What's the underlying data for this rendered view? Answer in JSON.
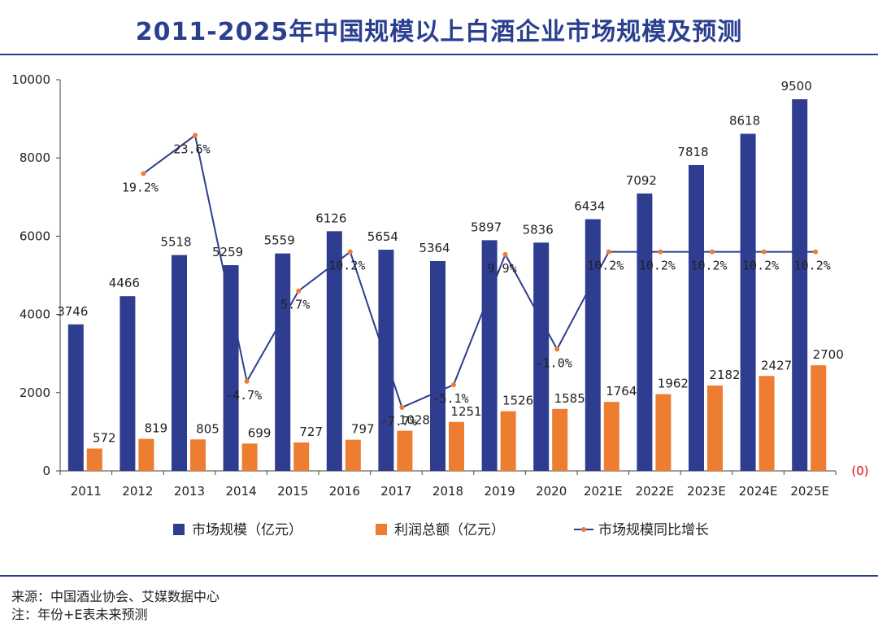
{
  "header": {
    "title": "2011-2025年中国规模以上白酒企业市场规模及预测"
  },
  "footer": {
    "source": "来源：中国酒业协会、艾媒数据中心",
    "note": "注：年份+E表未来预测"
  },
  "chart_data": {
    "type": "bar",
    "categories": [
      "2011",
      "2012",
      "2013",
      "2014",
      "2015",
      "2016",
      "2017",
      "2018",
      "2019",
      "2020",
      "2021E",
      "2022E",
      "2023E",
      "2024E",
      "2025E"
    ],
    "series": [
      {
        "name": "市场规模（亿元）",
        "kind": "bar",
        "color": "#2e3d8f",
        "values": [
          3746,
          4466,
          5518,
          5259,
          5559,
          6126,
          5654,
          5364,
          5897,
          5836,
          6434,
          7092,
          7818,
          8618,
          9500
        ],
        "labels": [
          "3746",
          "4466",
          "5518",
          "5259",
          "5559",
          "6126",
          "5654",
          "5364",
          "5897",
          "5836",
          "6434",
          "7092",
          "7818",
          "8618",
          "9500"
        ]
      },
      {
        "name": "利润总额（亿元）",
        "kind": "bar",
        "color": "#ed7d31",
        "values": [
          572,
          819,
          805,
          699,
          727,
          797,
          1028,
          1251,
          1526,
          1585,
          1764,
          1962,
          2182,
          2427,
          2700
        ],
        "labels": [
          "572",
          "819",
          "805",
          "699",
          "727",
          "797",
          "1028",
          "1251",
          "1526",
          "1585",
          "1764",
          "1962",
          "2182",
          "2427",
          "2700"
        ]
      },
      {
        "name": "市场规模同比增长",
        "kind": "line",
        "color": "#2e3d8f",
        "marker_color": "#ed7d31",
        "values": [
          null,
          19.2,
          23.6,
          -4.7,
          5.7,
          10.2,
          -7.7,
          -5.1,
          9.9,
          -1.0,
          10.2,
          10.2,
          10.2,
          10.2,
          10.2
        ],
        "labels": [
          "",
          "19.2%",
          "23.6%",
          "-4.7%",
          "5.7%",
          "10.2%",
          "-7.7%",
          "-5.1%",
          "9.9%",
          "-1.0%",
          "10.2%",
          "10.2%",
          "10.2%",
          "10.2%",
          "10.2%"
        ]
      }
    ],
    "y_axis": {
      "ylim": [
        0,
        10000
      ],
      "ticks": [
        0,
        2000,
        4000,
        6000,
        8000,
        10000
      ],
      "tick_labels": [
        "0",
        "2000",
        "4000",
        "6000",
        "8000",
        "10000"
      ]
    },
    "secondary_axis": {
      "ylim": [
        -15,
        30
      ],
      "tick_labels": [
        "(0)"
      ]
    },
    "grid": false,
    "legend_position": "bottom"
  }
}
